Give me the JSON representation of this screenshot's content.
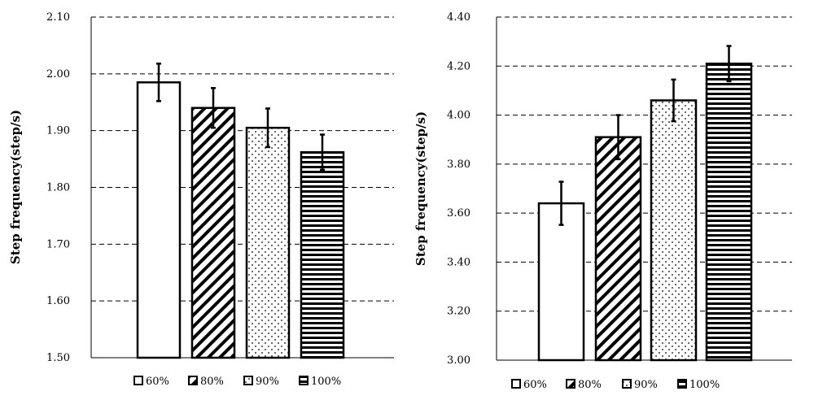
{
  "chart_data": [
    {
      "type": "bar",
      "ylabel": "Step frequency(step/s)",
      "ylim": [
        1.5,
        2.1
      ],
      "yticks": [
        "1.50",
        "1.60",
        "1.70",
        "1.80",
        "1.90",
        "2.00",
        "2.10"
      ],
      "grid": true,
      "legend": "bottom",
      "series": [
        {
          "name": "60%",
          "value": 1.985,
          "error": 0.033,
          "pattern": "none"
        },
        {
          "name": "80%",
          "value": 1.94,
          "error": 0.035,
          "pattern": "diagonal"
        },
        {
          "name": "90%",
          "value": 1.905,
          "error": 0.034,
          "pattern": "dots"
        },
        {
          "name": "100%",
          "value": 1.862,
          "error": 0.031,
          "pattern": "horizontal"
        }
      ]
    },
    {
      "type": "bar",
      "ylabel": "Step frequency(step/s)",
      "ylim": [
        3.0,
        4.4
      ],
      "yticks": [
        "3.00",
        "3.20",
        "3.40",
        "3.60",
        "3.80",
        "4.00",
        "4.20",
        "4.40"
      ],
      "grid": true,
      "legend": "bottom",
      "series": [
        {
          "name": "60%",
          "value": 3.64,
          "error": 0.088,
          "pattern": "none"
        },
        {
          "name": "80%",
          "value": 3.91,
          "error": 0.09,
          "pattern": "diagonal"
        },
        {
          "name": "90%",
          "value": 4.06,
          "error": 0.085,
          "pattern": "dots"
        },
        {
          "name": "100%",
          "value": 4.21,
          "error": 0.072,
          "pattern": "horizontal"
        }
      ]
    }
  ],
  "colors": {
    "bar_stroke": "#000000",
    "bar_fill": "#ffffff",
    "grid": "#000000"
  }
}
